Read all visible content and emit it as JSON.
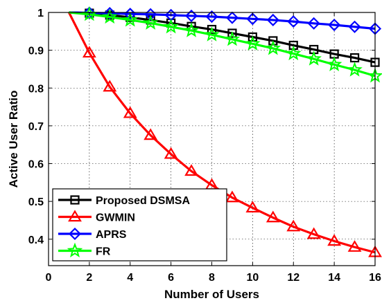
{
  "chart_data": {
    "type": "line",
    "title": "",
    "xlabel": "Number of Users",
    "ylabel": "Active User Ratio",
    "xlim": [
      0,
      16
    ],
    "ylim": [
      0.33,
      1.0
    ],
    "xticks": [
      0,
      2,
      4,
      6,
      8,
      10,
      12,
      14,
      16
    ],
    "yticks": [
      0.4,
      0.5,
      0.6,
      0.7,
      0.8,
      0.9,
      1
    ],
    "ytick_labels": [
      "0.4",
      "0.5",
      "0.6",
      "0.7",
      "0.8",
      "0.9",
      "1"
    ],
    "grid": true,
    "legend_position": "bottom-left",
    "series": [
      {
        "name": "Proposed DSMSA",
        "color": "#000000",
        "marker": "square",
        "x": [
          1,
          2,
          3,
          4,
          5,
          6,
          7,
          8,
          9,
          10,
          11,
          12,
          13,
          14,
          15,
          16
        ],
        "y": [
          1.0,
          0.998,
          0.993,
          0.987,
          0.98,
          0.972,
          0.963,
          0.955,
          0.945,
          0.935,
          0.925,
          0.913,
          0.902,
          0.89,
          0.88,
          0.868
        ]
      },
      {
        "name": "GWMIN",
        "color": "#ff0000",
        "marker": "triangle",
        "x": [
          1,
          2,
          3,
          4,
          5,
          6,
          7,
          8,
          9,
          10,
          11,
          12,
          13,
          14,
          15,
          16
        ],
        "y": [
          1.0,
          0.893,
          0.803,
          0.733,
          0.675,
          0.625,
          0.58,
          0.543,
          0.51,
          0.483,
          0.457,
          0.433,
          0.413,
          0.395,
          0.379,
          0.365
        ]
      },
      {
        "name": "APRS",
        "color": "#0000ff",
        "marker": "diamond",
        "x": [
          1,
          2,
          3,
          4,
          5,
          6,
          7,
          8,
          9,
          10,
          11,
          12,
          13,
          14,
          15,
          16
        ],
        "y": [
          1.0,
          0.999,
          0.998,
          0.996,
          0.995,
          0.993,
          0.991,
          0.989,
          0.986,
          0.983,
          0.98,
          0.976,
          0.971,
          0.967,
          0.962,
          0.957
        ]
      },
      {
        "name": "FR",
        "color": "#00ff00",
        "marker": "star",
        "x": [
          1,
          2,
          3,
          4,
          5,
          6,
          7,
          8,
          9,
          10,
          11,
          12,
          13,
          14,
          15,
          16
        ],
        "y": [
          1.0,
          0.995,
          0.988,
          0.98,
          0.972,
          0.962,
          0.952,
          0.941,
          0.929,
          0.917,
          0.905,
          0.891,
          0.877,
          0.862,
          0.848,
          0.832
        ]
      }
    ]
  }
}
